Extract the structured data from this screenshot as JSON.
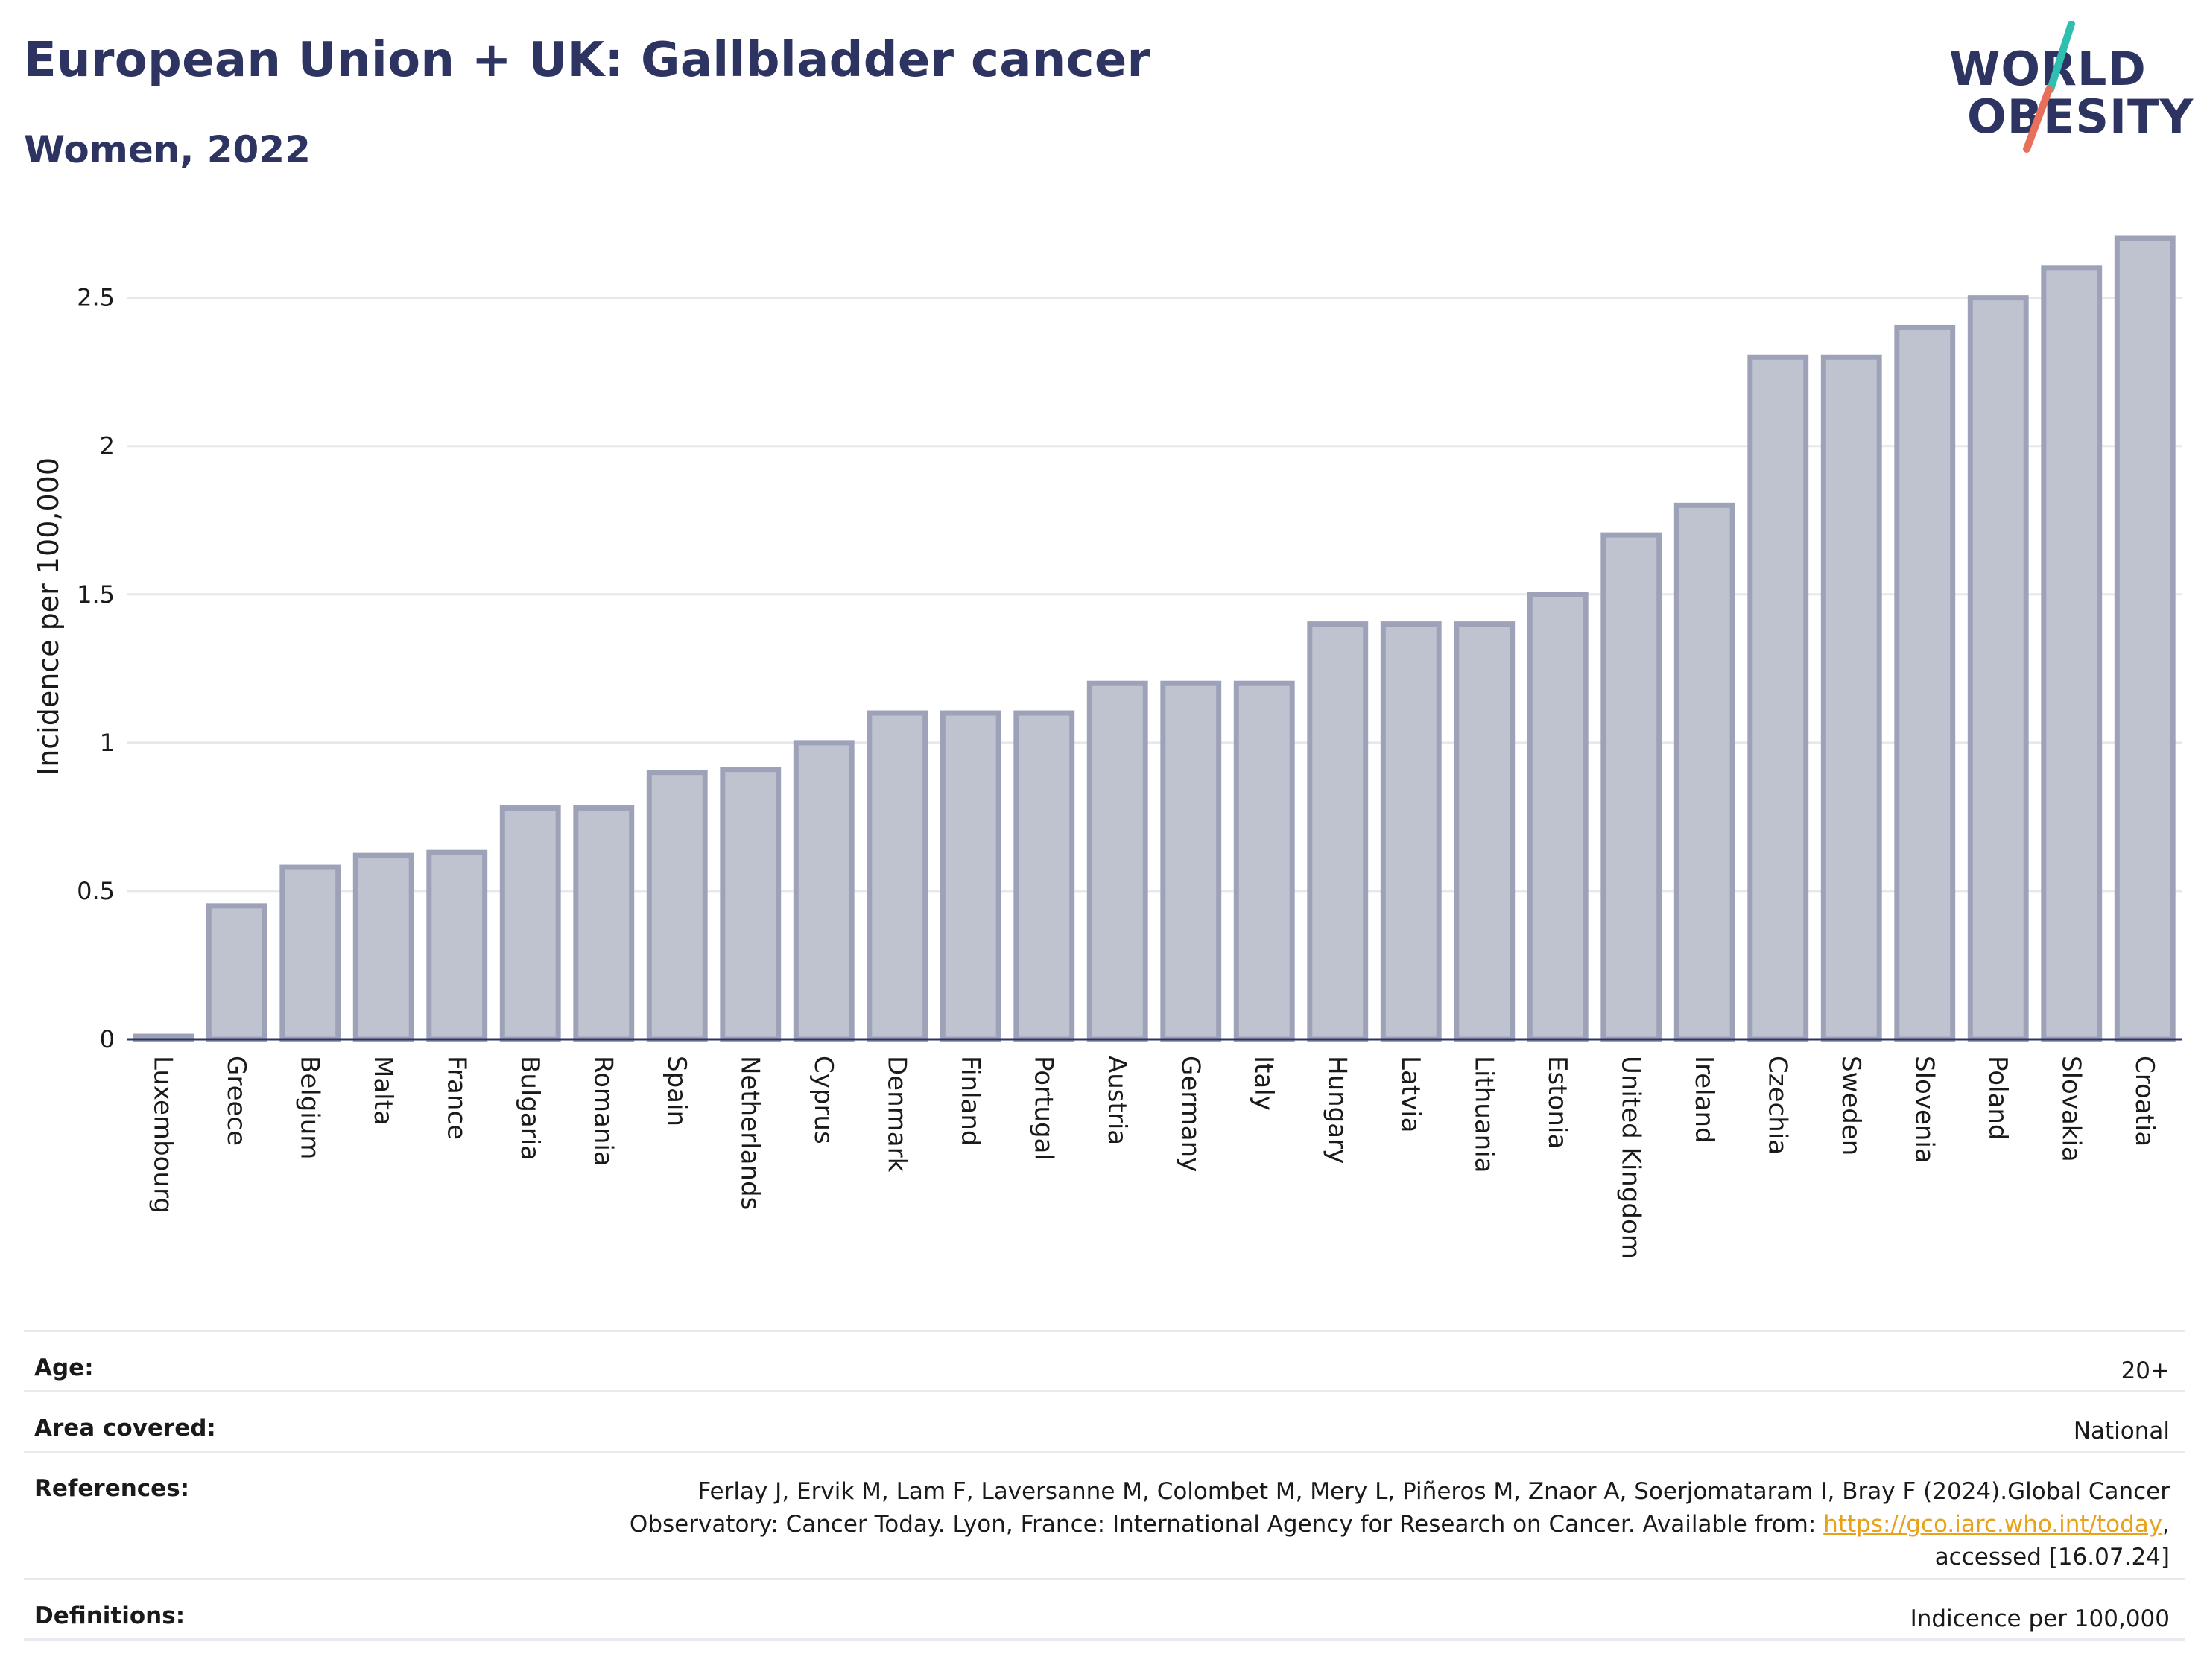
{
  "header": {
    "title": "European Union + UK: Gallbladder cancer",
    "subtitle": "Women, 2022"
  },
  "logo": {
    "line1": "WORLD",
    "line2": "OBESITY"
  },
  "colors": {
    "bar_fill": "#bfc3d0",
    "bar_stroke": "#9da2b9",
    "title": "#2d3461",
    "grid": "#e6e8ee",
    "logo_teal": "#2fbfb0",
    "logo_coral": "#e8705a",
    "link": "#e8a21a"
  },
  "chart_data": {
    "type": "bar",
    "categories": [
      "Luxembourg",
      "Greece",
      "Belgium",
      "Malta",
      "France",
      "Bulgaria",
      "Romania",
      "Spain",
      "Netherlands",
      "Cyprus",
      "Denmark",
      "Finland",
      "Portugal",
      "Austria",
      "Germany",
      "Italy",
      "Hungary",
      "Latvia",
      "Lithuania",
      "Estonia",
      "United Kingdom",
      "Ireland",
      "Czechia",
      "Sweden",
      "Slovenia",
      "Poland",
      "Slovakia",
      "Croatia"
    ],
    "values": [
      0.01,
      0.45,
      0.58,
      0.62,
      0.63,
      0.78,
      0.78,
      0.9,
      0.91,
      1.0,
      1.1,
      1.1,
      1.1,
      1.2,
      1.2,
      1.2,
      1.4,
      1.4,
      1.4,
      1.5,
      1.7,
      1.8,
      2.3,
      2.3,
      2.4,
      2.5,
      2.6,
      2.7
    ],
    "ylabel": "Incidence per 100,000",
    "xlabel": "",
    "ylim": [
      0,
      2.7
    ],
    "yticks": [
      0,
      0.5,
      1,
      1.5,
      2,
      2.5
    ],
    "ytick_labels": [
      "0",
      "0.5",
      "1",
      "1.5",
      "2",
      "2.5"
    ],
    "grid": true
  },
  "info_table": [
    {
      "label": "Age:",
      "value_lines": [
        "20+"
      ]
    },
    {
      "label": "Area covered:",
      "value_lines": [
        "National"
      ]
    },
    {
      "label": "References:",
      "value_lines": [
        "Ferlay J, Ervik M, Lam F, Laversanne M, Colombet M, Mery L, Piñeros M, Znaor A, Soerjomataram I, Bray F (2024).Global Cancer",
        "Observatory: Cancer Today. Lyon, France: International Agency for Research on Cancer. Available from: ",
        "accessed [16.07.24]"
      ],
      "link": "https://gco.iarc.who.int/today",
      "link_suffix": ","
    },
    {
      "label": "Definitions:",
      "value_lines": [
        "Indicence per 100,000"
      ]
    }
  ]
}
